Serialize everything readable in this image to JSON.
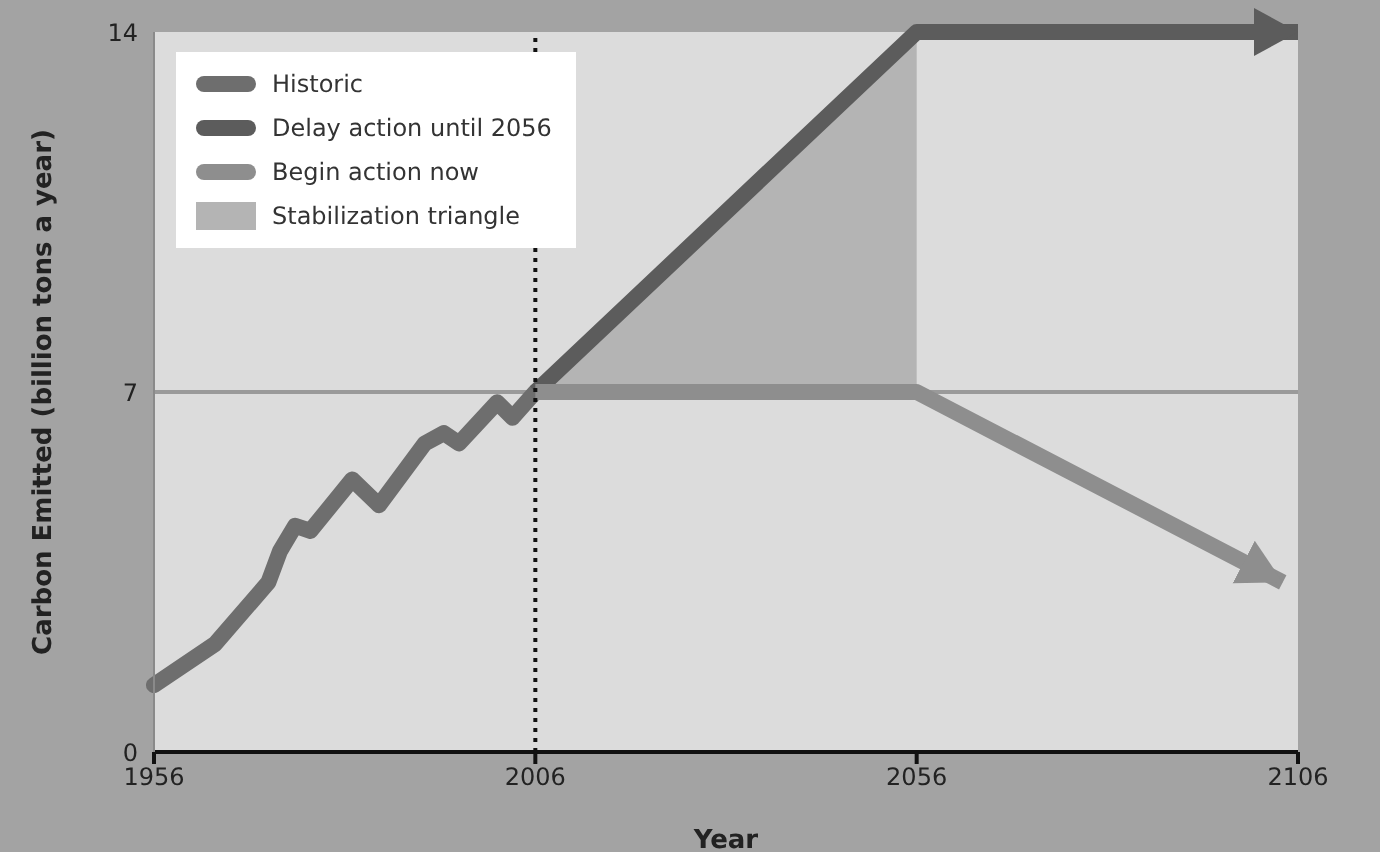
{
  "chart_data": {
    "type": "line",
    "xlabel": "Year",
    "ylabel": "Carbon Emitted (billion tons a year)",
    "xlim": [
      1956,
      2106
    ],
    "xticks": [
      1956,
      2006,
      2056,
      2106
    ],
    "ylim": [
      0,
      14
    ],
    "yticks": [
      0,
      7,
      14
    ],
    "legend": "top left",
    "marker": "none",
    "line_style": "solid",
    "ref_lines": [
      {
        "axis": "y",
        "value": 7,
        "color": "#9a9a9a",
        "line_style": "solid"
      },
      {
        "axis": "x",
        "value": 2006,
        "color": "#111111",
        "line_style": "dotted"
      }
    ],
    "series": [
      {
        "name": "Historic",
        "color": "#6e6e6e",
        "x": [
          1956,
          1964,
          1971,
          1972.5,
          1974.5,
          1976.5,
          1982,
          1985.5,
          1991.5,
          1994,
          1996,
          2001,
          2003,
          2006
        ],
        "values": [
          1.3,
          2.1,
          3.3,
          3.9,
          4.4,
          4.3,
          5.3,
          4.8,
          6.0,
          6.2,
          6.0,
          6.8,
          6.5,
          7.0
        ]
      },
      {
        "name": "Delay action until 2056",
        "color": "#5c5c5c",
        "x": [
          2006,
          2056,
          2106
        ],
        "values": [
          7,
          14,
          14
        ]
      },
      {
        "name": "Begin action now",
        "color": "#8e8e8e",
        "x": [
          2006,
          2056,
          2104
        ],
        "values": [
          7,
          7,
          3.3
        ]
      },
      {
        "name": "Stabilization triangle",
        "type": "area",
        "color": "#b4b4b4",
        "x": [
          2006,
          2056
        ],
        "values": [
          7,
          14
        ]
      }
    ]
  }
}
